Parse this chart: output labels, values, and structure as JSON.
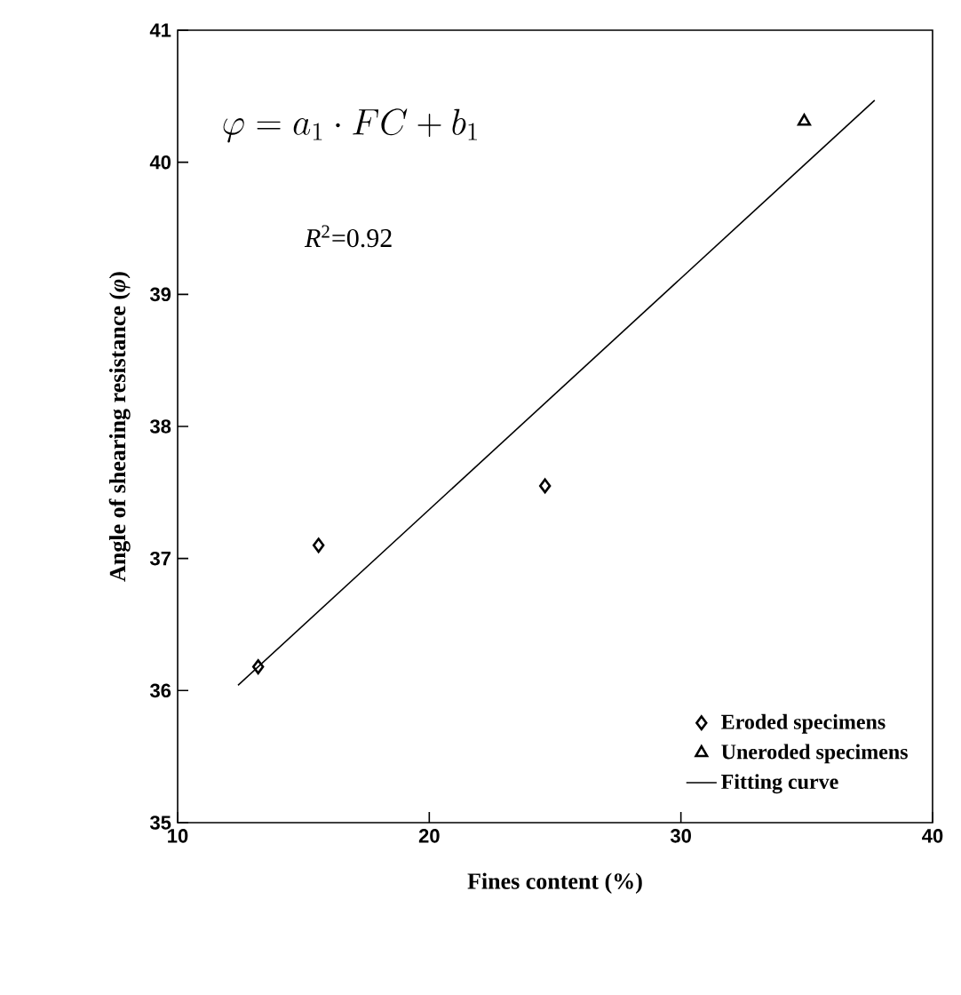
{
  "chart_data": {
    "type": "scatter",
    "xlabel": "Fines content (%)",
    "ylabel": "Angle of shearing resistance (*φ*)",
    "annotations": [
      "\\varphi = a_1 \\cdot FC + b_1",
      "*R*$^{2}$=0.92"
    ],
    "xlim": [
      10,
      40
    ],
    "xticks": [
      10,
      20,
      30,
      40
    ],
    "ylim": [
      35,
      41
    ],
    "yticks": [
      35,
      36,
      37,
      38,
      39,
      40,
      41
    ],
    "grid": false,
    "legend": "bottom right",
    "series": [
      {
        "name": "Eroded specimens",
        "marker": "diamond",
        "color": "#000000",
        "x": [
          13.2,
          15.6,
          24.6
        ],
        "values": [
          36.18,
          37.1,
          37.55
        ]
      },
      {
        "name": "Uneroded specimens",
        "marker": "triangle",
        "color": "#000000",
        "x": [
          34.9
        ],
        "values": [
          40.31
        ]
      },
      {
        "name": "Fitting curve",
        "type": "line",
        "line_style": "solid",
        "marker": "none",
        "color": "#000000",
        "x": [
          12.4,
          37.7
        ],
        "values": [
          36.04,
          40.47
        ]
      }
    ]
  }
}
